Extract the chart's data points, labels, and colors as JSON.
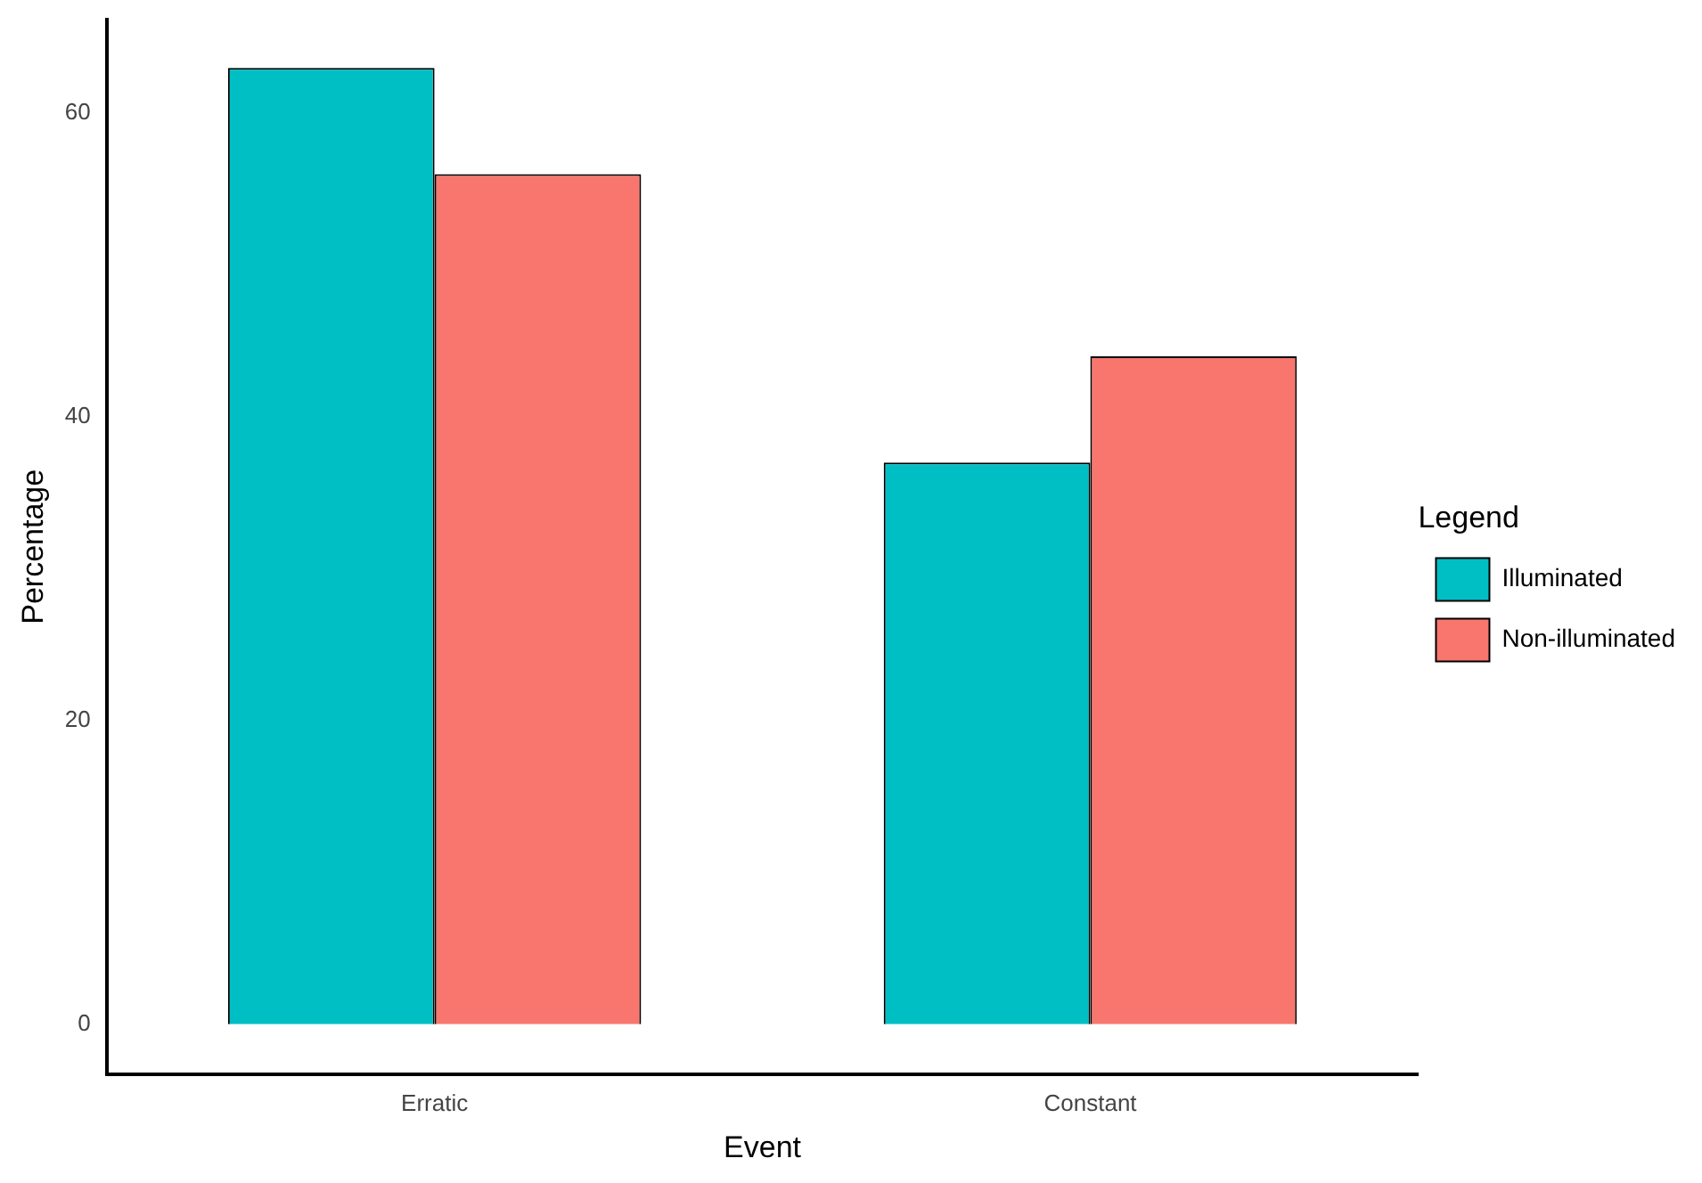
{
  "chart_data": {
    "type": "bar",
    "xlabel": "Event",
    "ylabel": "Percentage",
    "legend_title": "Legend",
    "categories": [
      "Erratic",
      "Constant"
    ],
    "series": [
      {
        "name": "Illuminated",
        "color": "#00bfc4",
        "values": [
          63,
          37
        ]
      },
      {
        "name": "Non-illuminated",
        "color": "#f8766d",
        "values": [
          56,
          44
        ]
      }
    ],
    "ylim": [
      -3.3,
      66.2
    ],
    "yticks": [
      0,
      20,
      40,
      60
    ],
    "grid": false,
    "legend": "right"
  }
}
